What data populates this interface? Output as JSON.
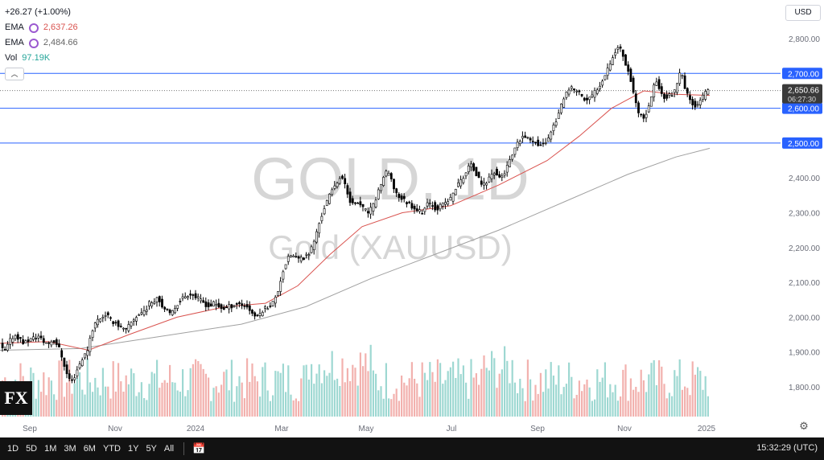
{
  "legend": {
    "change": "+26.27 (+1.00%)",
    "ema1": {
      "label": "EMA",
      "value": "2,637.26",
      "color": "#d9534f"
    },
    "ema2": {
      "label": "EMA",
      "value": "2,484.66",
      "color": "#888888"
    },
    "vol": {
      "label": "Vol",
      "value": "97.19K",
      "color": "#26a69a"
    },
    "collapse_icon": "chevron-up-icon"
  },
  "currency": "USD",
  "watermark": {
    "line1": "GOLD, 1D",
    "line2": "Gold (XAUUSD)"
  },
  "logo_text": "FX",
  "colors": {
    "up": "#26a69a",
    "down": "#ef5350",
    "candle": "#000000",
    "level": "#2962ff",
    "ema_fast": "#d9534f",
    "ema_slow": "#a0a0a0"
  },
  "chart_data": {
    "type": "candlestick",
    "y_range": [
      1740,
      2850
    ],
    "y_ticks": [
      "2,800.00",
      "2,700.00",
      "2,600.00",
      "2,500.00",
      "2,400.00",
      "2,300.00",
      "2,200.00",
      "2,100.00",
      "2,000.00",
      "1,900.00",
      "1,800.00"
    ],
    "x_ticks": [
      "Sep",
      "Nov",
      "2024",
      "Mar",
      "May",
      "Jul",
      "Sep",
      "Nov",
      "2025"
    ],
    "horizontal_levels": [
      2700,
      2600,
      2500
    ],
    "level_labels": [
      "2,700.00",
      "2,600.00",
      "2,500.00"
    ],
    "current_price": {
      "value": 2650.66,
      "label": "2,650.66",
      "countdown": "06:27:30"
    },
    "price_path": [
      [
        0,
        1930
      ],
      [
        4,
        1910
      ],
      [
        8,
        1900
      ],
      [
        14,
        1930
      ],
      [
        20,
        1950
      ],
      [
        26,
        1940
      ],
      [
        32,
        1925
      ],
      [
        38,
        1935
      ],
      [
        44,
        1940
      ],
      [
        50,
        1945
      ],
      [
        56,
        1930
      ],
      [
        62,
        1925
      ],
      [
        68,
        1935
      ],
      [
        74,
        1920
      ],
      [
        80,
        1880
      ],
      [
        86,
        1830
      ],
      [
        92,
        1815
      ],
      [
        98,
        1850
      ],
      [
        104,
        1880
      ],
      [
        110,
        1900
      ],
      [
        116,
        1960
      ],
      [
        122,
        1990
      ],
      [
        128,
        2000
      ],
      [
        134,
        2010
      ],
      [
        140,
        1990
      ],
      [
        146,
        1985
      ],
      [
        152,
        1970
      ],
      [
        158,
        1960
      ],
      [
        164,
        1980
      ],
      [
        170,
        2000
      ],
      [
        176,
        2010
      ],
      [
        182,
        2020
      ],
      [
        188,
        2040
      ],
      [
        194,
        2050
      ],
      [
        198,
        2060
      ],
      [
        202,
        2040
      ],
      [
        208,
        2020
      ],
      [
        214,
        2005
      ],
      [
        220,
        2030
      ],
      [
        226,
        2050
      ],
      [
        232,
        2060
      ],
      [
        238,
        2070
      ],
      [
        244,
        2060
      ],
      [
        250,
        2050
      ],
      [
        256,
        2040
      ],
      [
        262,
        2030
      ],
      [
        268,
        2040
      ],
      [
        274,
        2030
      ],
      [
        280,
        2025
      ],
      [
        286,
        2030
      ],
      [
        292,
        2035
      ],
      [
        298,
        2040
      ],
      [
        304,
        2035
      ],
      [
        310,
        2030
      ],
      [
        316,
        2010
      ],
      [
        322,
        2000
      ],
      [
        328,
        2020
      ],
      [
        334,
        2030
      ],
      [
        340,
        2040
      ],
      [
        346,
        2060
      ],
      [
        352,
        2120
      ],
      [
        358,
        2160
      ],
      [
        364,
        2180
      ],
      [
        370,
        2170
      ],
      [
        376,
        2165
      ],
      [
        382,
        2175
      ],
      [
        388,
        2190
      ],
      [
        394,
        2230
      ],
      [
        400,
        2280
      ],
      [
        406,
        2320
      ],
      [
        412,
        2350
      ],
      [
        418,
        2380
      ],
      [
        424,
        2400
      ],
      [
        430,
        2390
      ],
      [
        436,
        2340
      ],
      [
        442,
        2320
      ],
      [
        448,
        2330
      ],
      [
        454,
        2310
      ],
      [
        460,
        2300
      ],
      [
        466,
        2320
      ],
      [
        472,
        2360
      ],
      [
        478,
        2400
      ],
      [
        484,
        2420
      ],
      [
        490,
        2380
      ],
      [
        496,
        2350
      ],
      [
        502,
        2340
      ],
      [
        508,
        2330
      ],
      [
        514,
        2320
      ],
      [
        520,
        2310
      ],
      [
        526,
        2300
      ],
      [
        532,
        2320
      ],
      [
        538,
        2330
      ],
      [
        544,
        2310
      ],
      [
        550,
        2320
      ],
      [
        556,
        2330
      ],
      [
        562,
        2340
      ],
      [
        568,
        2370
      ],
      [
        574,
        2390
      ],
      [
        580,
        2410
      ],
      [
        586,
        2440
      ],
      [
        592,
        2420
      ],
      [
        598,
        2390
      ],
      [
        604,
        2380
      ],
      [
        610,
        2400
      ],
      [
        616,
        2420
      ],
      [
        622,
        2400
      ],
      [
        628,
        2410
      ],
      [
        634,
        2440
      ],
      [
        640,
        2470
      ],
      [
        646,
        2500
      ],
      [
        652,
        2520
      ],
      [
        658,
        2510
      ],
      [
        664,
        2510
      ],
      [
        670,
        2500
      ],
      [
        676,
        2490
      ],
      [
        682,
        2510
      ],
      [
        688,
        2540
      ],
      [
        694,
        2570
      ],
      [
        700,
        2610
      ],
      [
        706,
        2640
      ],
      [
        712,
        2660
      ],
      [
        718,
        2650
      ],
      [
        724,
        2640
      ],
      [
        730,
        2620
      ],
      [
        736,
        2630
      ],
      [
        742,
        2650
      ],
      [
        748,
        2670
      ],
      [
        754,
        2700
      ],
      [
        760,
        2730
      ],
      [
        766,
        2760
      ],
      [
        772,
        2780
      ],
      [
        778,
        2740
      ],
      [
        784,
        2700
      ],
      [
        790,
        2640
      ],
      [
        796,
        2580
      ],
      [
        802,
        2570
      ],
      [
        808,
        2600
      ],
      [
        814,
        2660
      ],
      [
        818,
        2680
      ],
      [
        824,
        2640
      ],
      [
        830,
        2630
      ],
      [
        836,
        2640
      ],
      [
        842,
        2650
      ],
      [
        848,
        2710
      ],
      [
        854,
        2650
      ],
      [
        860,
        2620
      ],
      [
        866,
        2610
      ],
      [
        872,
        2620
      ],
      [
        878,
        2640
      ],
      [
        882,
        2650
      ]
    ],
    "ema_fast_path": [
      [
        0,
        1925
      ],
      [
        60,
        1930
      ],
      [
        110,
        1905
      ],
      [
        160,
        1950
      ],
      [
        220,
        2000
      ],
      [
        280,
        2030
      ],
      [
        330,
        2040
      ],
      [
        370,
        2090
      ],
      [
        410,
        2180
      ],
      [
        450,
        2260
      ],
      [
        500,
        2300
      ],
      [
        560,
        2320
      ],
      [
        620,
        2380
      ],
      [
        680,
        2450
      ],
      [
        720,
        2520
      ],
      [
        760,
        2600
      ],
      [
        800,
        2650
      ],
      [
        840,
        2640
      ],
      [
        882,
        2637
      ]
    ],
    "ema_slow_path": [
      [
        0,
        1905
      ],
      [
        100,
        1910
      ],
      [
        200,
        1945
      ],
      [
        300,
        1980
      ],
      [
        380,
        2030
      ],
      [
        460,
        2110
      ],
      [
        540,
        2180
      ],
      [
        620,
        2250
      ],
      [
        700,
        2330
      ],
      [
        780,
        2410
      ],
      [
        840,
        2460
      ],
      [
        882,
        2485
      ]
    ]
  },
  "bottom": {
    "timeframes": [
      "1D",
      "5D",
      "1M",
      "3M",
      "6M",
      "YTD",
      "1Y",
      "5Y",
      "All"
    ],
    "calendar_icon": "calendar-icon",
    "clock": "15:32:29 (UTC)",
    "settings_icon": "gear-icon"
  }
}
